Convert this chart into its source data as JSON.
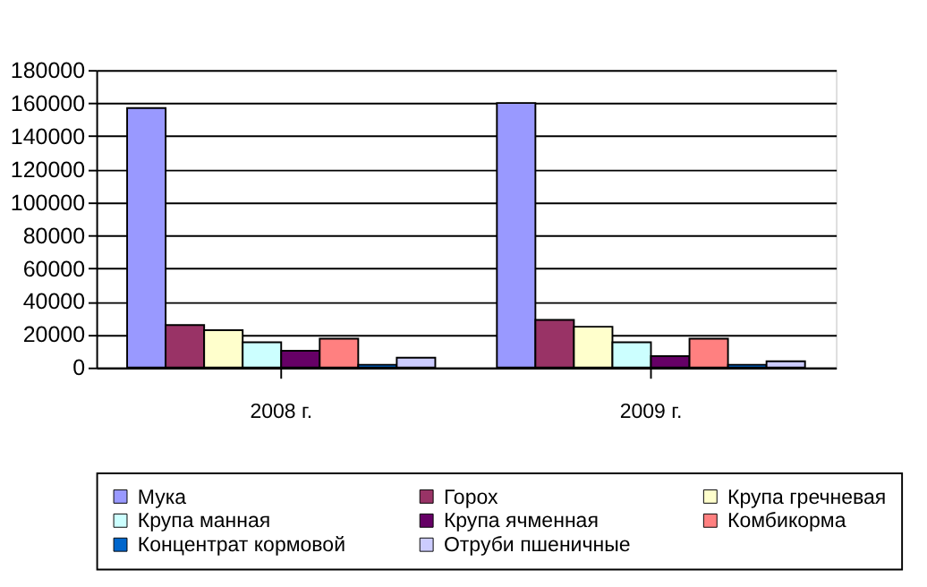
{
  "chart_data": {
    "type": "bar",
    "categories": [
      "2008 г.",
      "2009 г."
    ],
    "series": [
      {
        "name": "Мука",
        "color": "#9999ff",
        "values": [
          157000,
          160000
        ]
      },
      {
        "name": "Горох",
        "color": "#993366",
        "values": [
          25700,
          28800
        ]
      },
      {
        "name": "Крупа гречневая",
        "color": "#ffffcc",
        "values": [
          22600,
          24700
        ]
      },
      {
        "name": "Крупа манная",
        "color": "#ccffff",
        "values": [
          15300,
          15300
        ]
      },
      {
        "name": "Крупа ячменная",
        "color": "#660066",
        "values": [
          10100,
          6900
        ]
      },
      {
        "name": "Комбикорма",
        "color": "#ff8080",
        "values": [
          17400,
          17400
        ]
      },
      {
        "name": "Концентрат кормовой",
        "color": "#0066cc",
        "values": [
          1700,
          1700
        ]
      },
      {
        "name": "Отруби пшеничные",
        "color": "#ccccff",
        "values": [
          5900,
          3800
        ]
      }
    ],
    "ylim": [
      0,
      180000
    ],
    "yticks": [
      0,
      20000,
      40000,
      60000,
      80000,
      100000,
      120000,
      140000,
      160000,
      180000
    ],
    "grid": "y",
    "legend": "bottom"
  }
}
